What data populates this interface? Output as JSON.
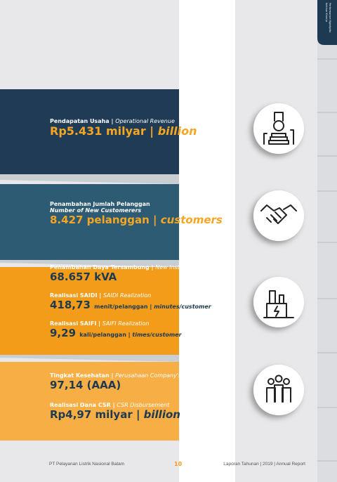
{
  "sidebar": {
    "tabs": [
      {
        "label": "Ikhtisar Kinerja",
        "label_en": "Performance Highlights"
      }
    ]
  },
  "panels": [
    {
      "items": [
        {
          "label": [
            "Pendapatan Usaha | ",
            "Operational Revenue"
          ],
          "value": [
            {
              "text": "Rp5.431 milyar | "
            },
            {
              "text": "billion",
              "italic": true
            }
          ]
        }
      ]
    },
    {
      "items": [
        {
          "label": [
            "Penambahan Jumlah Pelanggan"
          ],
          "sublabel": "Number of New Customerers",
          "value": [
            {
              "text": "8.427 pelanggan | "
            },
            {
              "text": "customers",
              "italic": true
            }
          ]
        }
      ]
    },
    {
      "items": [
        {
          "label": [
            "Penambahan Daya Tersambung | ",
            "New Installed Capacity"
          ],
          "value": [
            {
              "text": "68.657 "
            },
            {
              "text": "kVA"
            }
          ]
        },
        {
          "label": [
            "Realisasi SAIDI | ",
            "SAIDI Realization"
          ],
          "value": [
            {
              "text": "418,73 "
            },
            {
              "text": "menit/pelanggan | ",
              "small": true
            },
            {
              "text": "minutes/customer",
              "small": true,
              "italic": true
            }
          ]
        },
        {
          "label": [
            "Realisasi SAIFI | ",
            "SAIFI Realization"
          ],
          "value": [
            {
              "text": "9,29 "
            },
            {
              "text": "kali/pelanggan | ",
              "small": true
            },
            {
              "text": "times/customer",
              "small": true,
              "italic": true
            }
          ]
        }
      ]
    },
    {
      "items": [
        {
          "label": [
            "Tingkat Kesehatan | ",
            "Perusahaan Company's Soundness Level"
          ],
          "value": [
            {
              "text": "97,14 (AAA)"
            }
          ]
        },
        {
          "label": [
            "Realisasi Dana CSR | ",
            "CSR Disbursement"
          ],
          "value": [
            {
              "text": "Rp4,97 milyar | "
            },
            {
              "text": "billion",
              "italic": true
            }
          ]
        }
      ]
    }
  ],
  "footer": {
    "company": "PT Pelayanan Listrik Nasional Batam",
    "page": "10",
    "report": "Laporan Tahunan | 2019 | Annual Report"
  }
}
